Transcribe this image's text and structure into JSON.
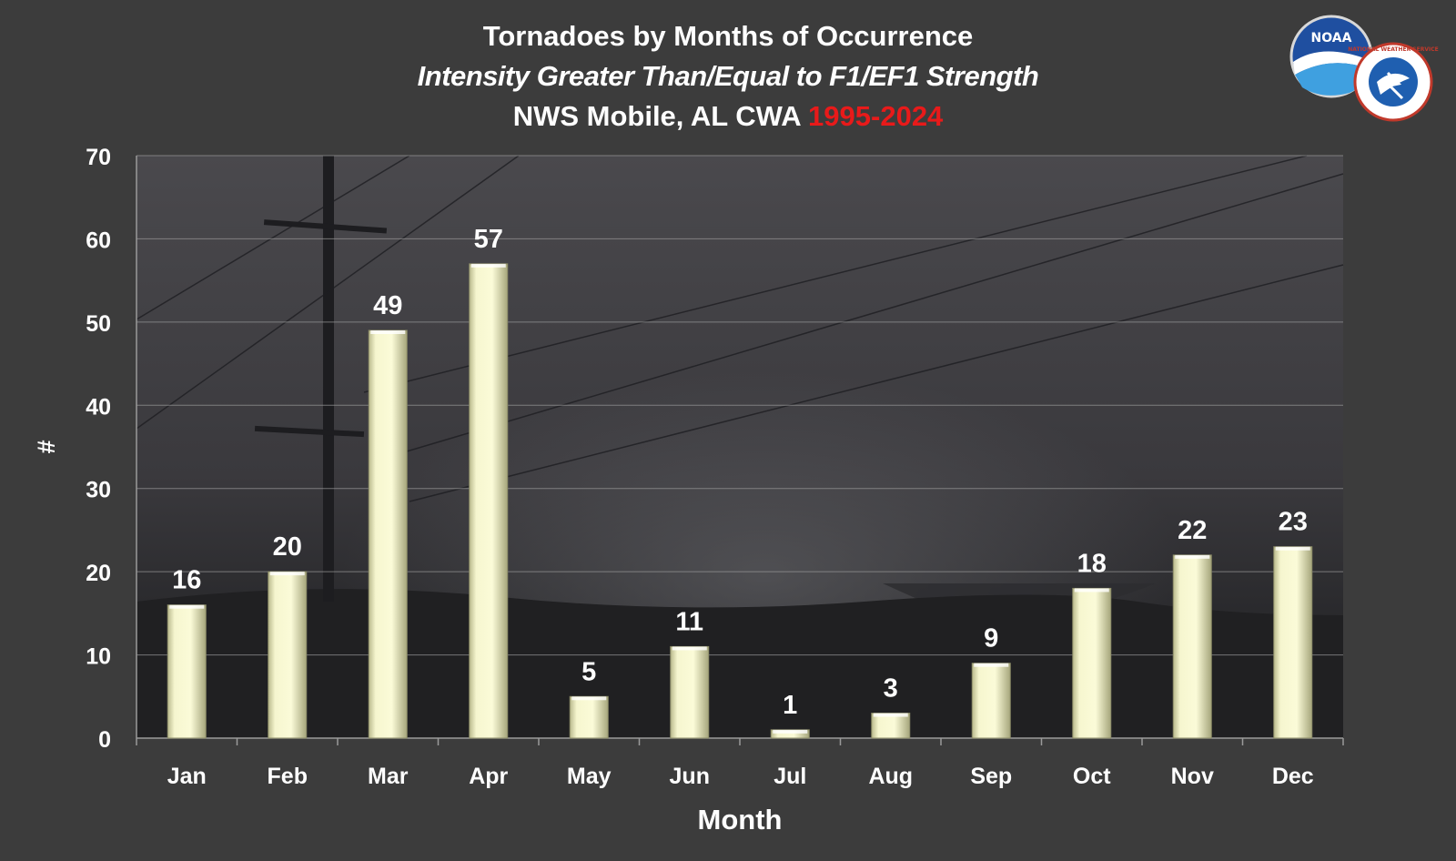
{
  "titles": {
    "line1": "Tornadoes by Months of Occurrence",
    "line2": "Intensity Greater Than/Equal to F1/EF1 Strength",
    "line3_prefix": "NWS Mobile, AL CWA ",
    "line3_years": "1995-2024"
  },
  "logos": {
    "noaa_text": "NOAA",
    "nws_text": "NATIONAL WEATHER SERVICE"
  },
  "colors": {
    "background": "#3c3c3c",
    "bar_fill": "#f4f4c4",
    "years_accent": "#e81a1a",
    "text": "#ffffff"
  },
  "chart_data": {
    "type": "bar",
    "title": "Tornadoes by Months of Occurrence",
    "subtitle": "Intensity Greater Than/Equal to F1/EF1 Strength",
    "xlabel": "Month",
    "ylabel": "#",
    "categories": [
      "Jan",
      "Feb",
      "Mar",
      "Apr",
      "May",
      "Jun",
      "Jul",
      "Aug",
      "Sep",
      "Oct",
      "Nov",
      "Dec"
    ],
    "values": [
      16,
      20,
      49,
      57,
      5,
      11,
      1,
      3,
      9,
      18,
      22,
      23
    ],
    "ylim": [
      0,
      70
    ],
    "yticks": [
      0,
      10,
      20,
      30,
      40,
      50,
      60,
      70
    ],
    "grid": true,
    "data_labels": true,
    "background_image": "tornado-photo"
  }
}
